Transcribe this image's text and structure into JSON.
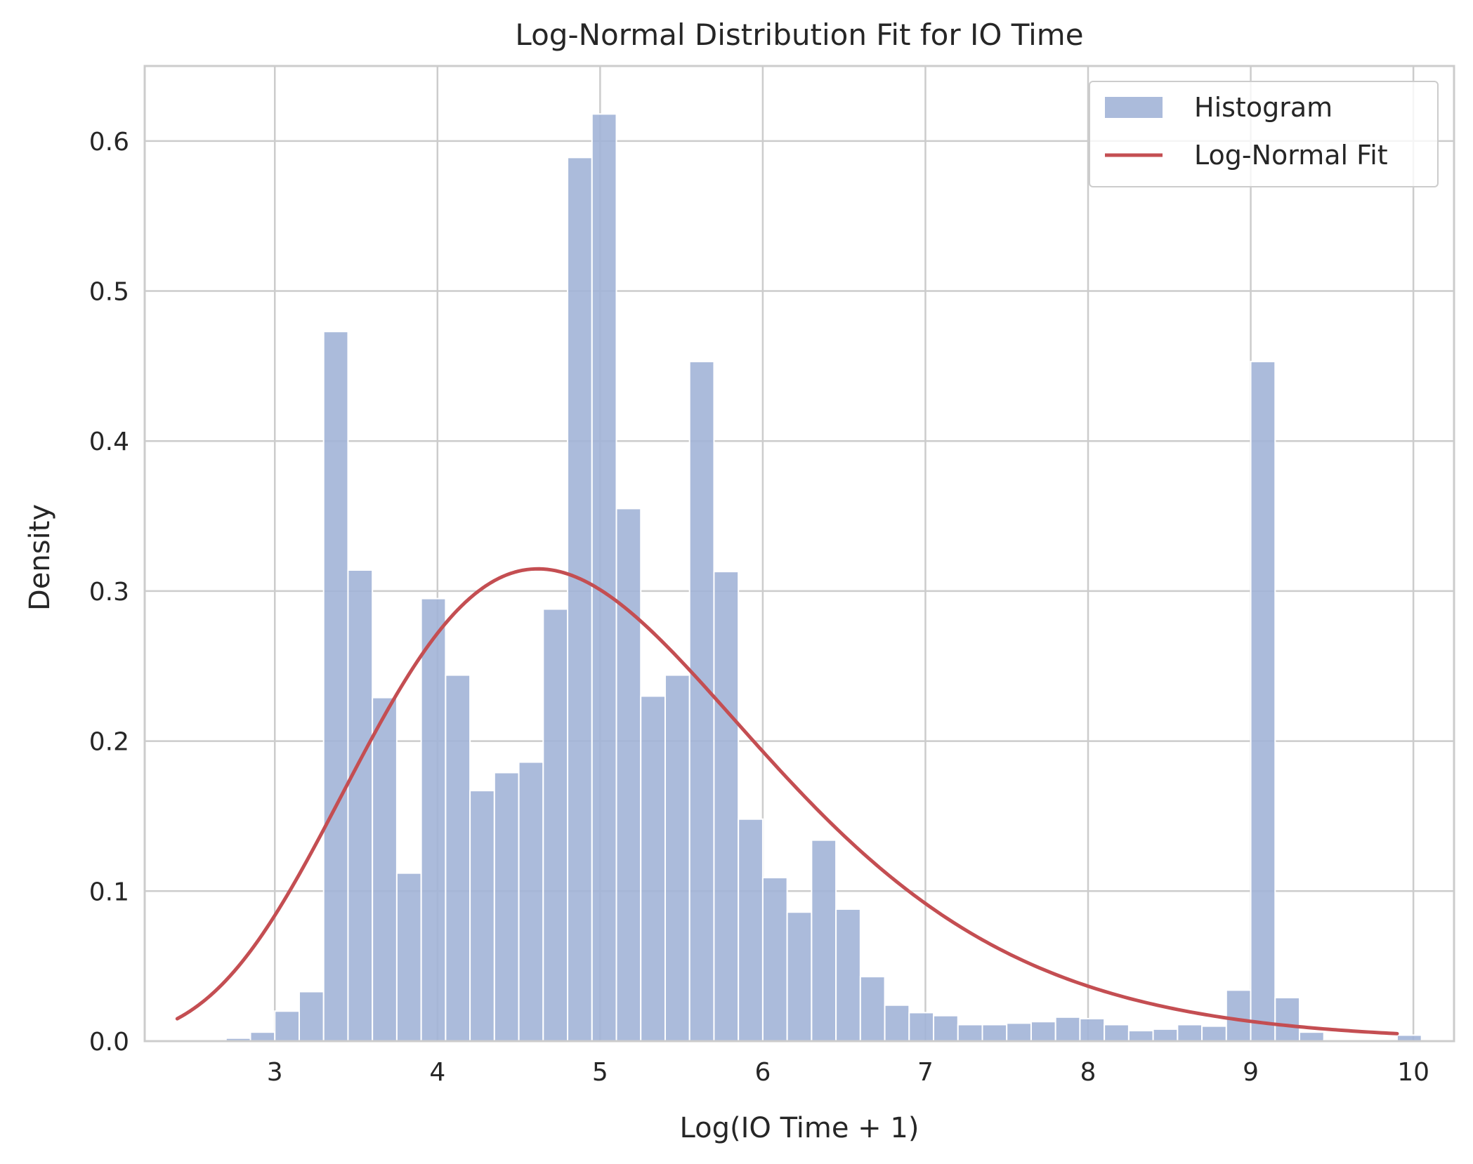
{
  "chart_data": {
    "type": "bar",
    "title": "Log-Normal Distribution Fit for IO Time",
    "xlabel": "Log(IO Time + 1)",
    "ylabel": "Density",
    "xlim": [
      2.2,
      10.25
    ],
    "ylim": [
      0,
      0.65
    ],
    "xticks": [
      3,
      4,
      5,
      6,
      7,
      8,
      9,
      10
    ],
    "yticks": [
      0.0,
      0.1,
      0.2,
      0.3,
      0.4,
      0.5,
      0.6
    ],
    "xtick_labels": [
      "3",
      "4",
      "5",
      "6",
      "7",
      "8",
      "9",
      "10"
    ],
    "ytick_labels": [
      "0.0",
      "0.1",
      "0.2",
      "0.3",
      "0.4",
      "0.5",
      "0.6"
    ],
    "grid": true,
    "legend_position": "top-right",
    "bin_start": 2.4,
    "bin_width": 0.15,
    "histogram": {
      "name": "Histogram",
      "color": "#a2b4d7",
      "values": [
        0.0,
        0.0,
        0.002,
        0.006,
        0.02,
        0.033,
        0.473,
        0.314,
        0.229,
        0.112,
        0.295,
        0.244,
        0.167,
        0.179,
        0.186,
        0.288,
        0.589,
        0.618,
        0.355,
        0.23,
        0.244,
        0.453,
        0.313,
        0.148,
        0.109,
        0.086,
        0.134,
        0.088,
        0.043,
        0.024,
        0.019,
        0.017,
        0.011,
        0.011,
        0.012,
        0.013,
        0.016,
        0.015,
        0.011,
        0.007,
        0.008,
        0.011,
        0.01,
        0.034,
        0.453,
        0.029,
        0.006,
        0.001,
        0.001,
        0.001,
        0.004
      ]
    },
    "fit": {
      "name": "Log-Normal Fit",
      "color": "#c44e52",
      "x_range": [
        2.4,
        9.9
      ],
      "mu": 1.6,
      "sigma": 0.265
    }
  }
}
